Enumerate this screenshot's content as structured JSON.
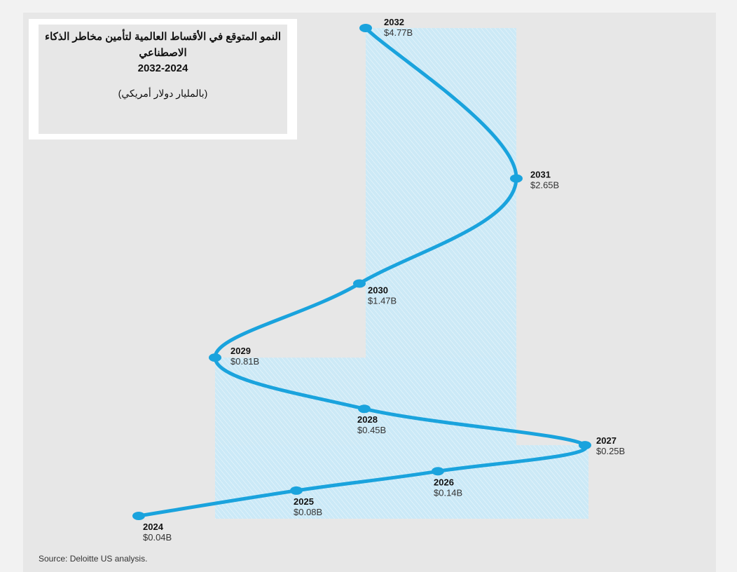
{
  "title": {
    "line1": "النمو المتوقع في الأقساط العالمية لتأمين مخاطر الذكاء",
    "line2": "الاصطناعي",
    "range": "2032-2024",
    "unit": "(بالمليار دولار أمريكي)"
  },
  "source": "Source: Deloitte US analysis.",
  "colors": {
    "line": "#1aa3dd",
    "fill": "#cbe9f7",
    "fill_hatch": "#ffffff",
    "panel": "#e7e7e7"
  },
  "chart_data": {
    "type": "line",
    "title": "النمو المتوقع في الأقساط العالمية لتأمين مخاطر الذكاء الاصطناعي 2032-2024",
    "subtitle": "(بالمليار دولار أمريكي)",
    "unit": "billion USD",
    "points": [
      {
        "year": "2024",
        "value": 0.04,
        "label": "$0.04B"
      },
      {
        "year": "2025",
        "value": 0.08,
        "label": "$0.08B"
      },
      {
        "year": "2026",
        "value": 0.14,
        "label": "$0.14B"
      },
      {
        "year": "2027",
        "value": 0.25,
        "label": "$0.25B"
      },
      {
        "year": "2028",
        "value": 0.45,
        "label": "$0.45B"
      },
      {
        "year": "2029",
        "value": 0.81,
        "label": "$0.81B"
      },
      {
        "year": "2030",
        "value": 1.47,
        "label": "$1.47B"
      },
      {
        "year": "2031",
        "value": 2.65,
        "label": "$2.65B"
      },
      {
        "year": "2032",
        "value": 4.77,
        "label": "$4.77B"
      }
    ]
  }
}
